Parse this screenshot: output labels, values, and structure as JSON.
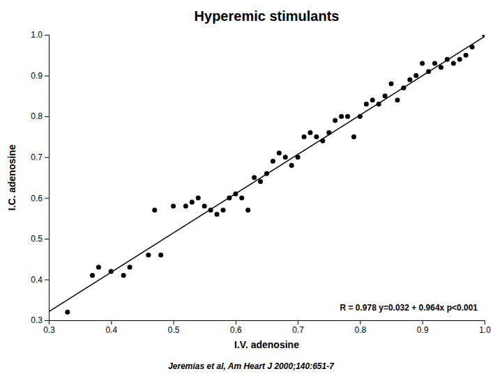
{
  "chart_data": {
    "type": "scatter",
    "title": "Hyperemic stimulants",
    "subtitle": "Jeremias et al, Am Heart J 2000;140:651-7",
    "xlabel": "I.V. adenosine",
    "ylabel": "I.C. adenosine",
    "annotation": "R = 0.978  y=0.032 + 0.964x  p<0.001",
    "xlim": [
      0.3,
      1.0
    ],
    "ylim": [
      0.3,
      1.0
    ],
    "xticks": [
      0.3,
      0.4,
      0.5,
      0.6,
      0.7,
      0.8,
      0.9,
      {
        "value": 1.0,
        "label": "1.0"
      }
    ],
    "yticks": [
      0.3,
      0.4,
      0.5,
      0.6,
      0.7,
      0.8,
      0.9,
      {
        "value": 1.0,
        "label": "1.0"
      }
    ],
    "grid": false,
    "series": [
      {
        "type": "scatter",
        "color": "black",
        "x": [
          0.33,
          0.37,
          0.38,
          0.4,
          0.42,
          0.43,
          0.46,
          0.47,
          0.48,
          0.5,
          0.52,
          0.53,
          0.54,
          0.55,
          0.56,
          0.57,
          0.58,
          0.59,
          0.6,
          0.61,
          0.62,
          0.63,
          0.64,
          0.65,
          0.66,
          0.67,
          0.68,
          0.69,
          0.7,
          0.71,
          0.72,
          0.73,
          0.74,
          0.75,
          0.76,
          0.77,
          0.78,
          0.79,
          0.8,
          0.81,
          0.82,
          0.83,
          0.84,
          0.85,
          0.86,
          0.87,
          0.88,
          0.89,
          0.9,
          0.91,
          0.92,
          0.93,
          0.94,
          0.95,
          0.96,
          0.97,
          0.98,
          1.0
        ],
        "values": [
          0.32,
          0.41,
          0.43,
          0.42,
          0.41,
          0.43,
          0.46,
          0.57,
          0.46,
          0.58,
          0.58,
          0.59,
          0.6,
          0.58,
          0.57,
          0.56,
          0.57,
          0.6,
          0.61,
          0.6,
          0.57,
          0.65,
          0.64,
          0.66,
          0.69,
          0.71,
          0.7,
          0.68,
          0.7,
          0.75,
          0.76,
          0.75,
          0.74,
          0.76,
          0.79,
          0.8,
          0.8,
          0.75,
          0.8,
          0.83,
          0.84,
          0.83,
          0.85,
          0.88,
          0.84,
          0.87,
          0.89,
          0.9,
          0.93,
          0.91,
          0.93,
          0.92,
          0.94,
          0.93,
          0.94,
          0.95,
          0.97,
          1.0
        ]
      },
      {
        "type": "line",
        "color": "black",
        "x": [
          0.3,
          1.0
        ],
        "values": [
          0.3212,
          0.996
        ]
      }
    ]
  }
}
